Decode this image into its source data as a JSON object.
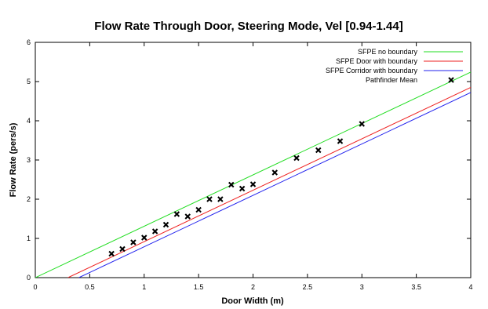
{
  "chart_data": {
    "type": "scatter",
    "title": "Flow Rate Through Door, Steering Mode, Vel [0.94-1.44]",
    "xlabel": "Door Width (m)",
    "ylabel": "Flow Rate (pers/s)",
    "xlim": [
      0,
      4
    ],
    "ylim": [
      0,
      6
    ],
    "x_ticks": [
      "0",
      "0.5",
      "1",
      "1.5",
      "2",
      "2.5",
      "3",
      "3.5",
      "4"
    ],
    "y_ticks": [
      "0",
      "1",
      "2",
      "3",
      "4",
      "5",
      "6"
    ],
    "grid": false,
    "legend_position": "top-right",
    "series": [
      {
        "name": "SFPE no boundary",
        "kind": "line",
        "color": "#22dd22",
        "x": [
          0,
          4
        ],
        "y": [
          0,
          5.24
        ]
      },
      {
        "name": "SFPE Door with boundary",
        "kind": "line",
        "color": "#ee2222",
        "x": [
          0.3,
          4
        ],
        "y": [
          0,
          4.85
        ]
      },
      {
        "name": "SFPE Corridor with boundary",
        "kind": "line",
        "color": "#2222ee",
        "x": [
          0.4,
          4
        ],
        "y": [
          0,
          4.72
        ]
      },
      {
        "name": "Pathfinder Mean",
        "kind": "points",
        "color": "#000000",
        "x": [
          0.7,
          0.8,
          0.9,
          1.0,
          1.1,
          1.2,
          1.3,
          1.4,
          1.5,
          1.6,
          1.7,
          1.8,
          1.9,
          2.0,
          2.2,
          2.4,
          2.6,
          2.8,
          3.0
        ],
        "y": [
          0.61,
          0.73,
          0.9,
          1.02,
          1.18,
          1.35,
          1.62,
          1.56,
          1.73,
          2.0,
          2.0,
          2.37,
          2.27,
          2.38,
          2.68,
          3.05,
          3.25,
          3.48,
          3.92
        ]
      }
    ]
  }
}
